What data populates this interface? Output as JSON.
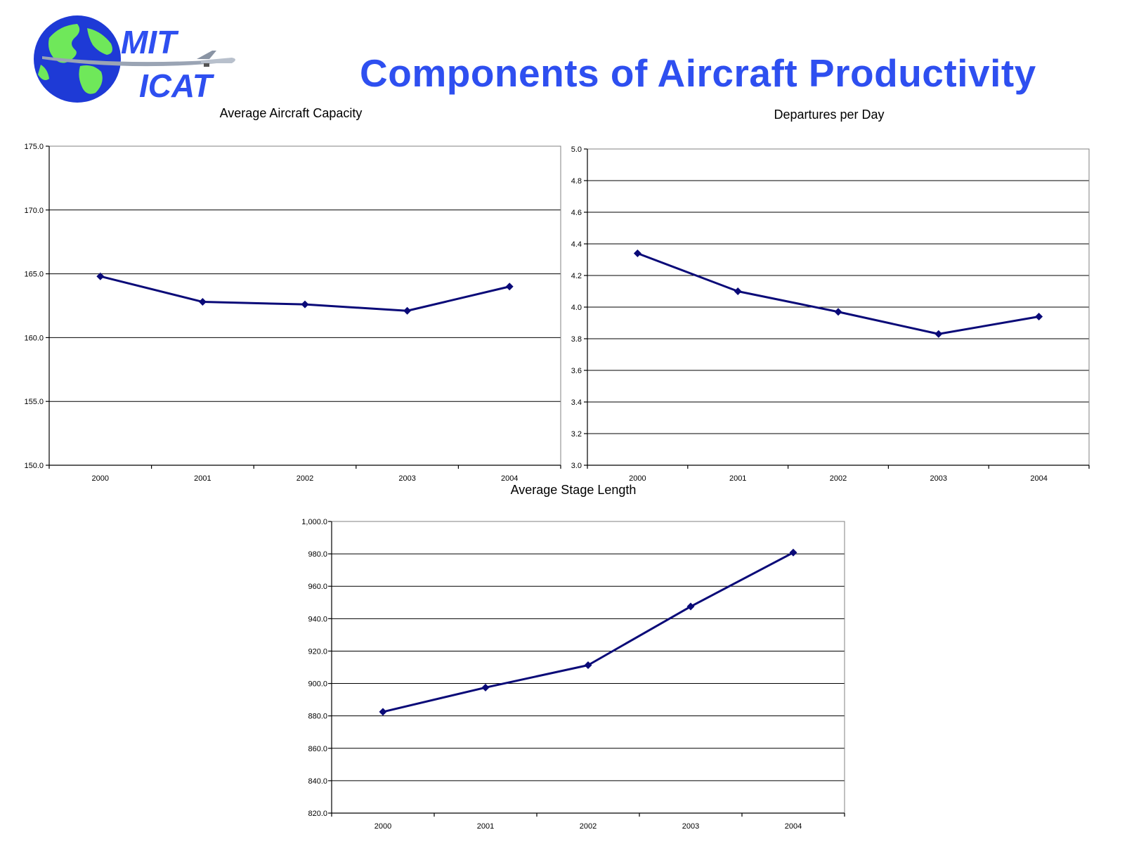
{
  "header": {
    "title": "Components of Aircraft Productivity",
    "logo": {
      "line1": "MIT",
      "line2": "ICAT",
      "icons": [
        "globe-icon",
        "airplane-icon"
      ]
    }
  },
  "colors": {
    "title": "#2e4ff0",
    "series": "#0a0a78",
    "logo_text": "#2e4ff0",
    "globe_ocean": "#1e3ad6",
    "globe_land": "#6fe85a"
  },
  "chart_data": [
    {
      "id": "capacity",
      "type": "line",
      "title": "Average Aircraft Capacity",
      "categories": [
        "2000",
        "2001",
        "2002",
        "2003",
        "2004"
      ],
      "values": [
        164.8,
        162.8,
        162.6,
        162.1,
        164.0
      ],
      "ylim": [
        150,
        175
      ],
      "yticks": [
        "150.0",
        "155.0",
        "160.0",
        "165.0",
        "170.0",
        "175.0"
      ],
      "grid": true
    },
    {
      "id": "departures",
      "type": "line",
      "title": "Departures per Day",
      "categories": [
        "2000",
        "2001",
        "2002",
        "2003",
        "2004"
      ],
      "values": [
        4.34,
        4.1,
        3.97,
        3.83,
        3.94
      ],
      "ylim": [
        3.0,
        5.0
      ],
      "yticks": [
        "3.0",
        "3.2",
        "3.4",
        "3.6",
        "3.8",
        "4.0",
        "4.2",
        "4.4",
        "4.6",
        "4.8",
        "5.0"
      ],
      "grid": true
    },
    {
      "id": "stage",
      "type": "line",
      "title": "Average Stage Length",
      "categories": [
        "2000",
        "2001",
        "2002",
        "2003",
        "2004"
      ],
      "values": [
        882.5,
        897.5,
        911.3,
        947.5,
        980.8
      ],
      "ylim": [
        820,
        1000
      ],
      "yticks": [
        "820.0",
        "840.0",
        "860.0",
        "880.0",
        "900.0",
        "920.0",
        "940.0",
        "960.0",
        "980.0",
        "1,000.0"
      ],
      "grid": true
    }
  ]
}
